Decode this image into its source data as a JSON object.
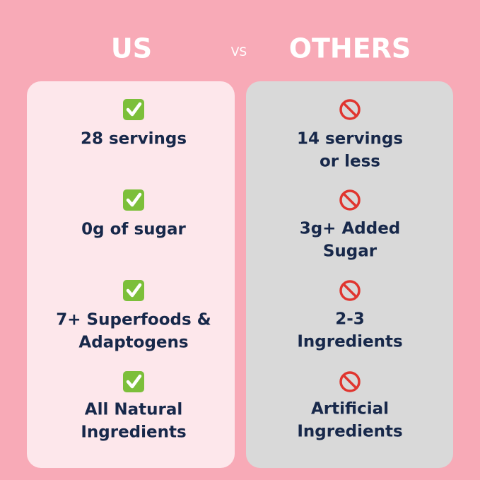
{
  "header": {
    "left": "US",
    "middle": "VS",
    "right": "OTHERS"
  },
  "columns": [
    {
      "items": [
        {
          "lines": [
            "28 servings"
          ]
        },
        {
          "lines": [
            "0g of sugar"
          ]
        },
        {
          "lines": [
            "7+ Superfoods &",
            "Adaptogens"
          ]
        },
        {
          "lines": [
            "All Natural",
            "Ingredients"
          ]
        }
      ]
    },
    {
      "items": [
        {
          "lines": [
            "14 servings",
            "or less"
          ]
        },
        {
          "lines": [
            "3g+ Added",
            "Sugar"
          ]
        },
        {
          "lines": [
            "2-3",
            "Ingredients"
          ]
        },
        {
          "lines": [
            "Artificial",
            "Ingredients"
          ]
        }
      ]
    }
  ]
}
